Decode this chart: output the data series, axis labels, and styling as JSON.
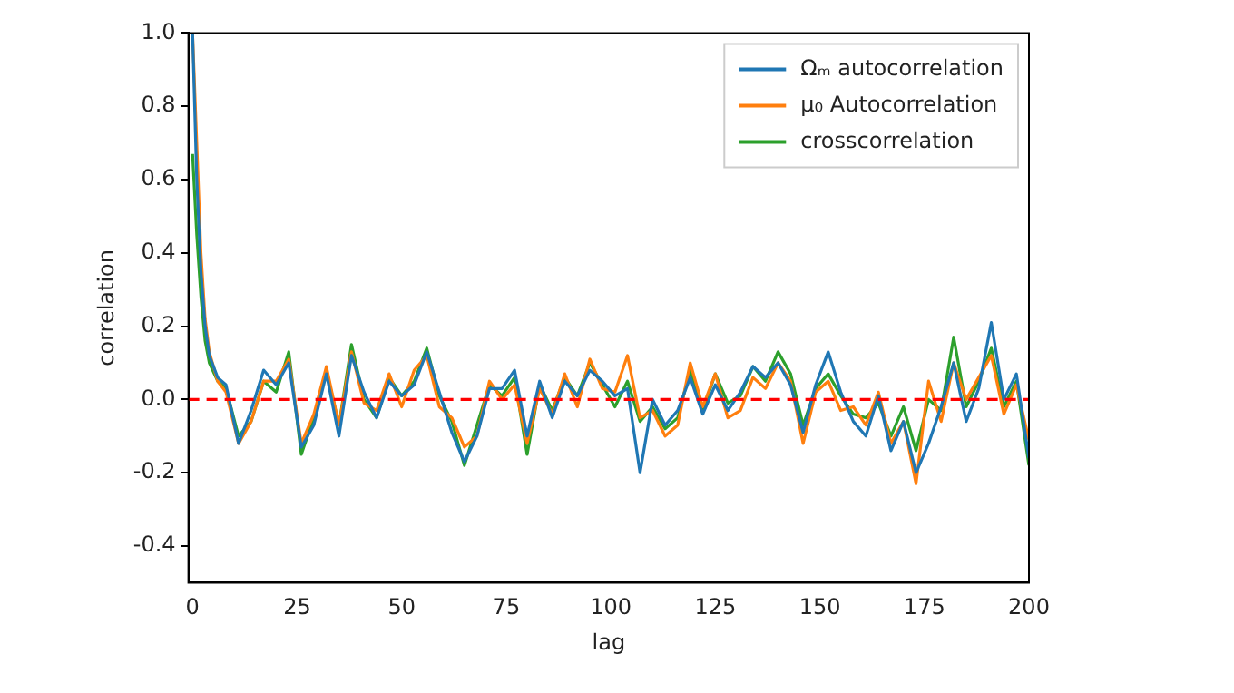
{
  "chart_data": {
    "type": "line",
    "xlabel": "lag",
    "ylabel": "correlation",
    "x": [
      0,
      1,
      2,
      3,
      4,
      6,
      8,
      11,
      14,
      17,
      20,
      23,
      26,
      29,
      32,
      35,
      38,
      41,
      44,
      47,
      50,
      53,
      56,
      59,
      62,
      65,
      68,
      71,
      74,
      77,
      80,
      83,
      86,
      89,
      92,
      95,
      98,
      101,
      104,
      107,
      110,
      113,
      116,
      119,
      122,
      125,
      128,
      131,
      134,
      137,
      140,
      143,
      146,
      149,
      152,
      155,
      158,
      161,
      164,
      167,
      170,
      173,
      176,
      179,
      182,
      185,
      188,
      191,
      194,
      197,
      200
    ],
    "series": [
      {
        "name": "Ωₘ autocorrelation",
        "color": "#1f77b4",
        "values": [
          1.0,
          0.6,
          0.35,
          0.2,
          0.12,
          0.06,
          0.04,
          -0.12,
          -0.03,
          0.08,
          0.04,
          0.1,
          -0.13,
          -0.07,
          0.07,
          -0.1,
          0.12,
          0.02,
          -0.05,
          0.05,
          0.01,
          0.04,
          0.13,
          0.02,
          -0.09,
          -0.17,
          -0.1,
          0.03,
          0.03,
          0.08,
          -0.1,
          0.05,
          -0.05,
          0.05,
          0.01,
          0.08,
          0.05,
          0.01,
          0.03,
          -0.2,
          0.0,
          -0.07,
          -0.03,
          0.06,
          -0.04,
          0.04,
          -0.03,
          0.02,
          0.09,
          0.06,
          0.1,
          0.04,
          -0.09,
          0.04,
          0.13,
          0.02,
          -0.06,
          -0.1,
          0.01,
          -0.14,
          -0.06,
          -0.2,
          -0.12,
          -0.02,
          0.1,
          -0.06,
          0.03,
          0.21,
          0.0,
          0.07,
          -0.16
        ]
      },
      {
        "name": "μ₀ Autocorrelation",
        "color": "#ff7f0e",
        "values": [
          1.0,
          0.7,
          0.4,
          0.22,
          0.13,
          0.05,
          0.02,
          -0.12,
          -0.06,
          0.05,
          0.05,
          0.11,
          -0.12,
          -0.04,
          0.09,
          -0.07,
          0.13,
          -0.01,
          -0.03,
          0.07,
          -0.02,
          0.08,
          0.12,
          -0.02,
          -0.05,
          -0.13,
          -0.1,
          0.05,
          0.0,
          0.04,
          -0.12,
          0.03,
          -0.04,
          0.07,
          -0.02,
          0.11,
          0.03,
          0.02,
          0.12,
          -0.05,
          -0.03,
          -0.1,
          -0.07,
          0.1,
          -0.02,
          0.07,
          -0.05,
          -0.03,
          0.06,
          0.03,
          0.1,
          0.05,
          -0.12,
          0.02,
          0.05,
          -0.03,
          -0.02,
          -0.07,
          0.02,
          -0.12,
          -0.06,
          -0.23,
          0.05,
          -0.06,
          0.1,
          0.0,
          0.06,
          0.12,
          -0.04,
          0.04,
          -0.11
        ]
      },
      {
        "name": "crosscorrelation",
        "color": "#2ca02c",
        "values": [
          0.67,
          0.45,
          0.28,
          0.16,
          0.1,
          0.05,
          0.03,
          -0.1,
          -0.06,
          0.05,
          0.02,
          0.13,
          -0.15,
          -0.05,
          0.08,
          -0.07,
          0.15,
          0.0,
          -0.05,
          0.06,
          0.01,
          0.05,
          0.14,
          0.01,
          -0.06,
          -0.18,
          -0.07,
          0.04,
          0.01,
          0.06,
          -0.15,
          0.04,
          -0.03,
          0.06,
          0.01,
          0.1,
          0.04,
          -0.02,
          0.05,
          -0.06,
          -0.02,
          -0.08,
          -0.05,
          0.08,
          -0.03,
          0.07,
          -0.01,
          0.01,
          0.09,
          0.05,
          0.13,
          0.07,
          -0.07,
          0.03,
          0.07,
          0.01,
          -0.04,
          -0.05,
          -0.01,
          -0.1,
          -0.02,
          -0.14,
          0.0,
          -0.03,
          0.17,
          -0.02,
          0.05,
          0.14,
          -0.02,
          0.05,
          -0.18
        ]
      }
    ],
    "xlim": [
      -1,
      200
    ],
    "xticks": [
      0,
      25,
      50,
      75,
      100,
      125,
      150,
      175,
      200
    ],
    "ylim": [
      -0.5,
      1.0
    ],
    "yticks": [
      -0.4,
      -0.2,
      {
        "value": 0,
        "label": "0.0"
      },
      0.2,
      0.4,
      0.6,
      0.8,
      {
        "value": 1,
        "label": "1.0"
      }
    ],
    "ref_lines": [
      {
        "axis": "y",
        "value": 0,
        "color": "#ff0000",
        "line_style": "dashed"
      }
    ],
    "legend": "top right",
    "grid": false,
    "marker": "none",
    "line_style": "solid"
  }
}
